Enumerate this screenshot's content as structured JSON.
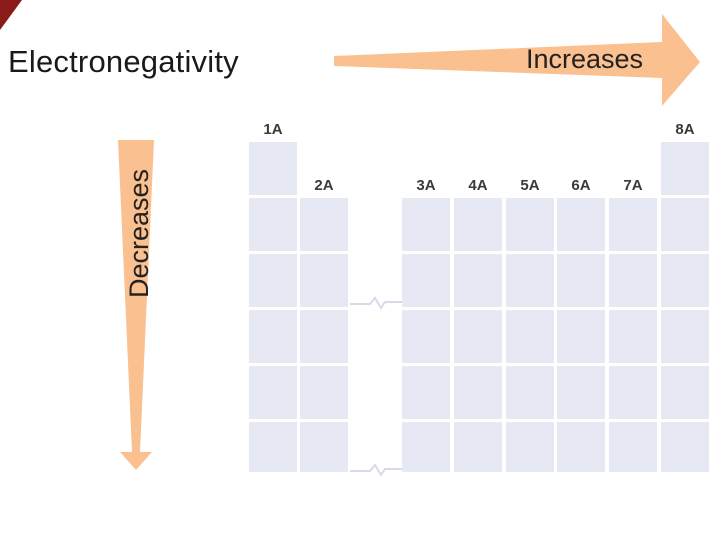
{
  "title": "Electronegativity",
  "horizontal_arrow": {
    "label": "Increases",
    "color": "#fbc08f"
  },
  "vertical_arrow": {
    "label": "Decreases",
    "color": "#fbc08f"
  },
  "corner_color": "#8b1a1a",
  "cell_color": "#e6e8f3",
  "groups": [
    "1A",
    "2A",
    "3A",
    "4A",
    "5A",
    "6A",
    "7A",
    "8A"
  ]
}
